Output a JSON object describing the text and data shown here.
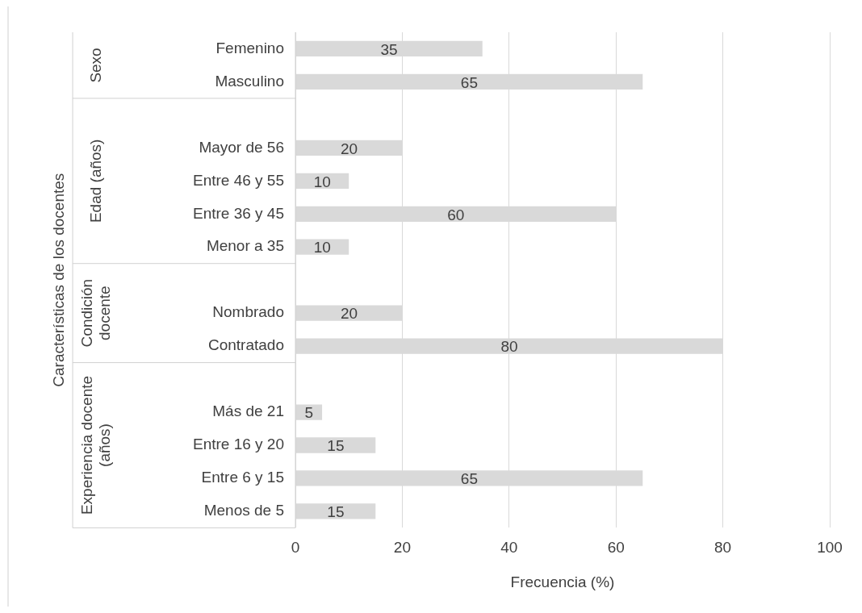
{
  "chart_data": {
    "type": "bar",
    "orientation": "horizontal",
    "xlabel": "Frecuencia (%)",
    "categories": [
      "Femenino",
      "Masculino",
      null,
      "Mayor de 56",
      "Entre 46 y 55",
      "Entre 36 y 45",
      "Menor a 35",
      null,
      "Nombrado",
      "Contratado",
      null,
      "Más de 21",
      "Entre 16 y 20",
      "Entre 6 y 15",
      "Menos de 5"
    ],
    "values": [
      35,
      65,
      null,
      20,
      10,
      60,
      10,
      null,
      20,
      80,
      null,
      5,
      15,
      65,
      15
    ],
    "color": "#d9d9d9",
    "annotations": [
      "Sexo",
      "Edad (años)",
      "Condición docente",
      "Experiencia docente (años)",
      "Características de los docentes"
    ],
    "xlim": [
      0,
      100
    ],
    "xticks": [
      0,
      20,
      40,
      60,
      80,
      100
    ],
    "grid": "x",
    "data_labels": true
  }
}
